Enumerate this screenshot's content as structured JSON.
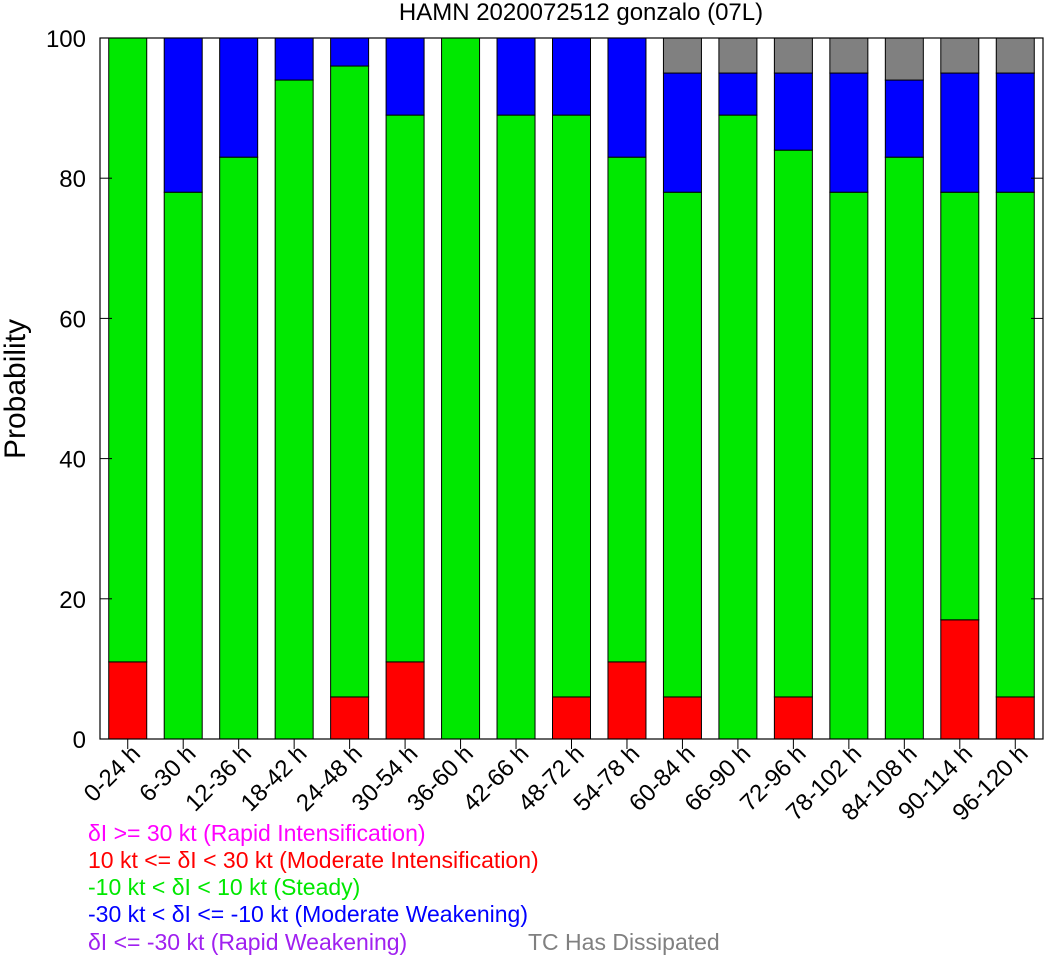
{
  "chart_data": {
    "type": "bar",
    "stacked": true,
    "title": "HAMN 2020072512 gonzalo (07L)",
    "xlabel": "",
    "ylabel": "Probability",
    "ylim": [
      0,
      100
    ],
    "yticks": [
      0,
      20,
      40,
      60,
      80,
      100
    ],
    "grid": false,
    "categories": [
      "0-24 h",
      "6-30 h",
      "12-36 h",
      "18-42 h",
      "24-48 h",
      "30-54 h",
      "36-60 h",
      "42-66 h",
      "48-72 h",
      "54-78 h",
      "60-84 h",
      "66-90 h",
      "72-96 h",
      "78-102 h",
      "84-108 h",
      "90-114 h",
      "96-120 h"
    ],
    "series": [
      {
        "name": "δI >= 30 kt (Rapid Intensification)",
        "color": "#ff00ff",
        "values": [
          0,
          0,
          0,
          0,
          0,
          0,
          0,
          0,
          0,
          0,
          0,
          0,
          0,
          0,
          0,
          0,
          0
        ]
      },
      {
        "name": "10 kt <= δI < 30 kt (Moderate Intensification)",
        "color": "#ff0000",
        "values": [
          11,
          0,
          0,
          0,
          6,
          11,
          0,
          0,
          6,
          11,
          6,
          0,
          6,
          0,
          0,
          17,
          6
        ]
      },
      {
        "name": "-10 kt < δI < 10 kt (Steady)",
        "color": "#00e800",
        "values": [
          89,
          78,
          83,
          94,
          90,
          78,
          100,
          89,
          83,
          72,
          72,
          89,
          78,
          78,
          83,
          61,
          72
        ]
      },
      {
        "name": "-30 kt < δI <= -10 kt (Moderate Weakening)",
        "color": "#0000ff",
        "values": [
          0,
          22,
          17,
          6,
          4,
          11,
          0,
          11,
          11,
          17,
          17,
          6,
          11,
          17,
          11,
          17,
          17
        ]
      },
      {
        "name": "δI <= -30 kt (Rapid Weakening)",
        "color": "#a020f0",
        "values": [
          0,
          0,
          0,
          0,
          0,
          0,
          0,
          0,
          0,
          0,
          0,
          0,
          0,
          0,
          0,
          0,
          0
        ]
      },
      {
        "name": "TC Has Dissipated",
        "color": "#808080",
        "values": [
          0,
          0,
          0,
          0,
          0,
          0,
          0,
          0,
          0,
          0,
          5,
          5,
          5,
          5,
          6,
          5,
          5
        ]
      }
    ]
  }
}
